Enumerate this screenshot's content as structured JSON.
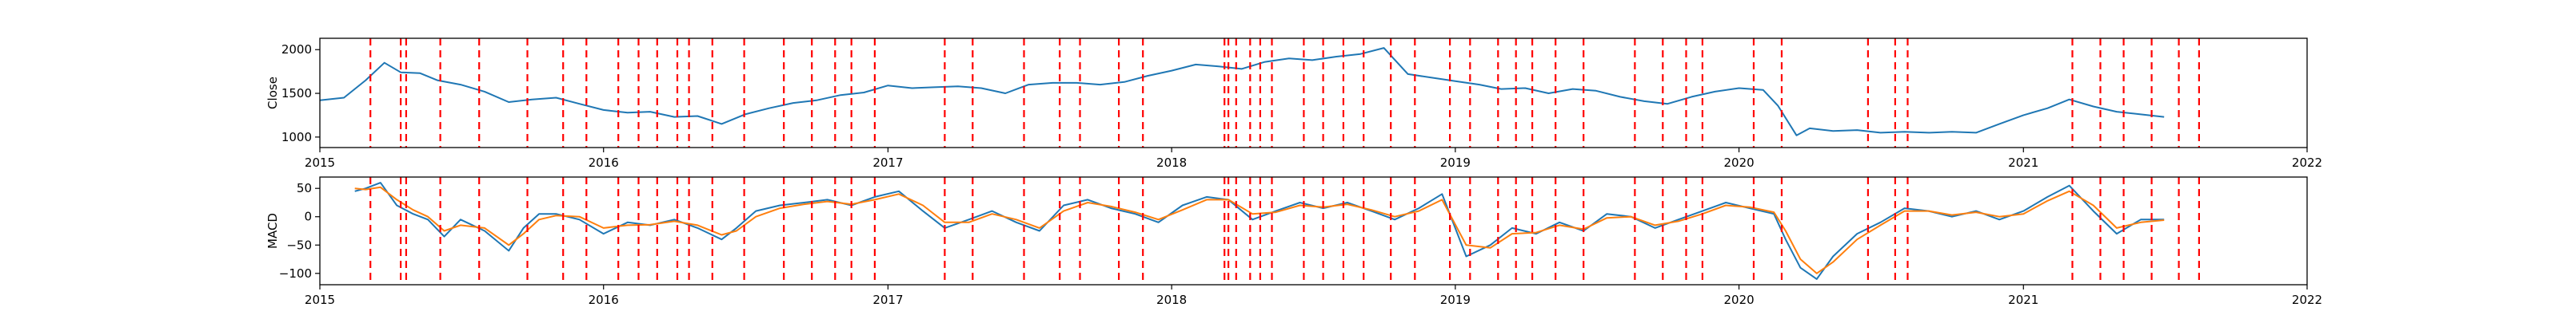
{
  "chart_data": [
    {
      "type": "line",
      "panel": "top",
      "ylabel": "Close",
      "xlim": [
        "2015-01-01",
        "2022-01-01"
      ],
      "ylim": [
        880,
        2130
      ],
      "x_ticks": [
        "2015-01-01",
        "2016-01-01",
        "2017-01-01",
        "2018-01-01",
        "2019-01-01",
        "2020-01-01",
        "2021-01-01",
        "2022-01-01"
      ],
      "x_tick_labels": [
        "2015",
        "2016",
        "2017",
        "2018",
        "2019",
        "2020",
        "2021",
        "2022"
      ],
      "y_ticks": [
        1000,
        1500,
        2000
      ],
      "y_tick_labels": [
        "1000",
        "1500",
        "2000"
      ],
      "grid": false,
      "series": [
        {
          "color": "#1f77b4",
          "x": [
            "2015-01-01",
            "2015-02-01",
            "2015-03-01",
            "2015-03-25",
            "2015-04-15",
            "2015-05-10",
            "2015-06-01",
            "2015-07-01",
            "2015-08-01",
            "2015-09-01",
            "2015-10-01",
            "2015-11-01",
            "2015-12-01",
            "2016-01-01",
            "2016-02-01",
            "2016-03-01",
            "2016-04-01",
            "2016-05-01",
            "2016-06-01",
            "2016-07-01",
            "2016-08-01",
            "2016-09-01",
            "2016-10-01",
            "2016-11-01",
            "2016-12-01",
            "2017-01-01",
            "2017-02-01",
            "2017-03-01",
            "2017-04-01",
            "2017-05-01",
            "2017-06-01",
            "2017-07-01",
            "2017-08-01",
            "2017-09-01",
            "2017-10-01",
            "2017-11-01",
            "2017-12-01",
            "2018-01-01",
            "2018-02-01",
            "2018-03-01",
            "2018-04-01",
            "2018-05-01",
            "2018-06-01",
            "2018-07-01",
            "2018-08-01",
            "2018-09-01",
            "2018-10-01",
            "2018-11-01",
            "2018-12-01",
            "2019-01-01",
            "2019-02-01",
            "2019-03-01",
            "2019-04-01",
            "2019-05-01",
            "2019-06-01",
            "2019-07-01",
            "2019-08-01",
            "2019-09-01",
            "2019-10-01",
            "2019-11-01",
            "2019-12-01",
            "2020-01-01",
            "2020-02-01",
            "2020-02-20",
            "2020-03-15",
            "2020-04-01",
            "2020-05-01",
            "2020-06-01",
            "2020-07-01",
            "2020-08-01",
            "2020-09-01",
            "2020-10-01",
            "2020-11-01",
            "2020-12-01",
            "2021-01-01",
            "2021-02-01",
            "2021-03-01",
            "2021-04-01",
            "2021-05-01",
            "2021-06-01",
            "2021-07-01"
          ],
          "y": [
            1420,
            1450,
            1650,
            1850,
            1740,
            1730,
            1650,
            1600,
            1520,
            1400,
            1430,
            1450,
            1380,
            1310,
            1280,
            1290,
            1230,
            1240,
            1150,
            1260,
            1330,
            1390,
            1420,
            1480,
            1510,
            1590,
            1560,
            1570,
            1580,
            1560,
            1500,
            1600,
            1620,
            1620,
            1600,
            1630,
            1700,
            1760,
            1830,
            1810,
            1780,
            1860,
            1900,
            1880,
            1920,
            1950,
            2020,
            1720,
            1680,
            1640,
            1600,
            1550,
            1560,
            1500,
            1550,
            1530,
            1460,
            1410,
            1380,
            1460,
            1520,
            1560,
            1540,
            1360,
            1020,
            1100,
            1070,
            1080,
            1050,
            1060,
            1050,
            1060,
            1050,
            1150,
            1250,
            1330,
            1430,
            1350,
            1290,
            1260,
            1230
          ]
        }
      ]
    },
    {
      "type": "line",
      "panel": "bottom",
      "ylabel": "MACD",
      "xlim": [
        "2015-01-01",
        "2022-01-01"
      ],
      "ylim": [
        -120,
        70
      ],
      "x_ticks": [
        "2015-01-01",
        "2016-01-01",
        "2017-01-01",
        "2018-01-01",
        "2019-01-01",
        "2020-01-01",
        "2021-01-01",
        "2022-01-01"
      ],
      "x_tick_labels": [
        "2015",
        "2016",
        "2017",
        "2018",
        "2019",
        "2020",
        "2021",
        "2022"
      ],
      "y_ticks": [
        -100,
        -50,
        0,
        50
      ],
      "y_tick_labels": [
        "−100",
        "−50",
        "0",
        "50"
      ],
      "grid": false,
      "series": [
        {
          "color": "#1f77b4",
          "x": [
            "2015-02-15",
            "2015-03-01",
            "2015-03-20",
            "2015-04-10",
            "2015-05-01",
            "2015-05-20",
            "2015-06-10",
            "2015-07-01",
            "2015-08-01",
            "2015-09-01",
            "2015-09-20",
            "2015-10-10",
            "2015-11-01",
            "2015-12-01",
            "2016-01-01",
            "2016-02-01",
            "2016-03-01",
            "2016-04-01",
            "2016-05-01",
            "2016-06-01",
            "2016-06-20",
            "2016-07-15",
            "2016-08-15",
            "2016-09-15",
            "2016-10-15",
            "2016-11-15",
            "2016-12-15",
            "2017-01-15",
            "2017-02-15",
            "2017-03-15",
            "2017-04-15",
            "2017-05-15",
            "2017-06-15",
            "2017-07-15",
            "2017-08-15",
            "2017-09-15",
            "2017-10-15",
            "2017-11-15",
            "2017-12-15",
            "2018-01-15",
            "2018-02-15",
            "2018-03-15",
            "2018-04-15",
            "2018-05-15",
            "2018-06-15",
            "2018-07-15",
            "2018-08-15",
            "2018-09-15",
            "2018-10-15",
            "2018-11-15",
            "2018-12-15",
            "2019-01-15",
            "2019-02-15",
            "2019-03-15",
            "2019-04-15",
            "2019-05-15",
            "2019-06-15",
            "2019-07-15",
            "2019-08-15",
            "2019-09-15",
            "2019-10-15",
            "2019-11-15",
            "2019-12-15",
            "2020-01-15",
            "2020-02-15",
            "2020-03-01",
            "2020-03-20",
            "2020-04-10",
            "2020-05-01",
            "2020-06-01",
            "2020-07-01",
            "2020-08-01",
            "2020-09-01",
            "2020-10-01",
            "2020-11-01",
            "2020-12-01",
            "2021-01-01",
            "2021-02-01",
            "2021-03-01",
            "2021-04-01",
            "2021-05-01",
            "2021-06-01",
            "2021-07-01"
          ],
          "y": [
            45,
            50,
            60,
            20,
            5,
            -5,
            -35,
            -5,
            -25,
            -60,
            -20,
            5,
            5,
            -5,
            -30,
            -10,
            -15,
            -5,
            -20,
            -40,
            -20,
            10,
            20,
            25,
            30,
            20,
            35,
            45,
            10,
            -20,
            -5,
            10,
            -10,
            -25,
            20,
            30,
            15,
            5,
            -10,
            20,
            35,
            30,
            -5,
            10,
            25,
            15,
            25,
            10,
            -5,
            15,
            40,
            -70,
            -50,
            -20,
            -30,
            -10,
            -25,
            5,
            0,
            -20,
            -5,
            10,
            25,
            15,
            5,
            -40,
            -90,
            -110,
            -70,
            -30,
            -10,
            15,
            10,
            0,
            10,
            -5,
            10,
            35,
            55,
            10,
            -30,
            -5,
            -5
          ]
        },
        {
          "color": "#ff7f0e",
          "x": [
            "2015-02-15",
            "2015-03-01",
            "2015-03-20",
            "2015-04-10",
            "2015-05-01",
            "2015-05-20",
            "2015-06-10",
            "2015-07-01",
            "2015-08-01",
            "2015-09-01",
            "2015-09-20",
            "2015-10-10",
            "2015-11-01",
            "2015-12-01",
            "2016-01-01",
            "2016-02-01",
            "2016-03-01",
            "2016-04-01",
            "2016-05-01",
            "2016-06-01",
            "2016-06-20",
            "2016-07-15",
            "2016-08-15",
            "2016-09-15",
            "2016-10-15",
            "2016-11-15",
            "2016-12-15",
            "2017-01-15",
            "2017-02-15",
            "2017-03-15",
            "2017-04-15",
            "2017-05-15",
            "2017-06-15",
            "2017-07-15",
            "2017-08-15",
            "2017-09-15",
            "2017-10-15",
            "2017-11-15",
            "2017-12-15",
            "2018-01-15",
            "2018-02-15",
            "2018-03-15",
            "2018-04-15",
            "2018-05-15",
            "2018-06-15",
            "2018-07-15",
            "2018-08-15",
            "2018-09-15",
            "2018-10-15",
            "2018-11-15",
            "2018-12-15",
            "2019-01-15",
            "2019-02-15",
            "2019-03-15",
            "2019-04-15",
            "2019-05-15",
            "2019-06-15",
            "2019-07-15",
            "2019-08-15",
            "2019-09-15",
            "2019-10-15",
            "2019-11-15",
            "2019-12-15",
            "2020-01-15",
            "2020-02-15",
            "2020-03-01",
            "2020-03-20",
            "2020-04-10",
            "2020-05-01",
            "2020-06-01",
            "2020-07-01",
            "2020-08-01",
            "2020-09-01",
            "2020-10-01",
            "2020-11-01",
            "2020-12-01",
            "2021-01-01",
            "2021-02-01",
            "2021-03-01",
            "2021-04-01",
            "2021-05-01",
            "2021-06-01",
            "2021-07-01"
          ],
          "y": [
            50,
            48,
            52,
            30,
            12,
            0,
            -25,
            -15,
            -20,
            -50,
            -30,
            -5,
            2,
            0,
            -20,
            -15,
            -14,
            -8,
            -15,
            -32,
            -25,
            0,
            15,
            22,
            27,
            22,
            30,
            40,
            20,
            -10,
            -10,
            5,
            -5,
            -20,
            10,
            25,
            18,
            8,
            -5,
            12,
            30,
            30,
            5,
            8,
            20,
            17,
            22,
            12,
            0,
            10,
            30,
            -50,
            -55,
            -30,
            -28,
            -15,
            -22,
            -2,
            0,
            -15,
            -8,
            5,
            20,
            17,
            8,
            -25,
            -75,
            -100,
            -80,
            -40,
            -15,
            10,
            10,
            3,
            8,
            0,
            5,
            28,
            45,
            20,
            -20,
            -10,
            -6
          ]
        }
      ]
    }
  ],
  "event_lines": {
    "color": "#ff0000",
    "dates": [
      "2015-03-07",
      "2015-04-15",
      "2015-04-22",
      "2015-06-05",
      "2015-07-25",
      "2015-09-25",
      "2015-11-10",
      "2015-12-10",
      "2016-01-20",
      "2016-02-15",
      "2016-03-10",
      "2016-04-05",
      "2016-04-20",
      "2016-05-20",
      "2016-06-30",
      "2016-08-20",
      "2016-09-25",
      "2016-10-25",
      "2016-11-15",
      "2016-12-15",
      "2017-03-15",
      "2017-04-20",
      "2017-06-25",
      "2017-08-10",
      "2017-09-05",
      "2017-10-25",
      "2017-11-25",
      "2018-03-10",
      "2018-03-15",
      "2018-03-25",
      "2018-04-12",
      "2018-04-25",
      "2018-05-10",
      "2018-06-20",
      "2018-07-15",
      "2018-08-10",
      "2018-09-05",
      "2018-10-10",
      "2018-11-10",
      "2018-12-25",
      "2019-01-20",
      "2019-02-25",
      "2019-03-20",
      "2019-04-10",
      "2019-05-10",
      "2019-06-15",
      "2019-08-20",
      "2019-09-25",
      "2019-10-25",
      "2019-11-15",
      "2020-01-20",
      "2020-02-25",
      "2020-06-15",
      "2020-07-20",
      "2020-08-05",
      "2021-03-05",
      "2021-04-10",
      "2021-05-10",
      "2021-06-15",
      "2021-07-20",
      "2021-08-15"
    ]
  }
}
